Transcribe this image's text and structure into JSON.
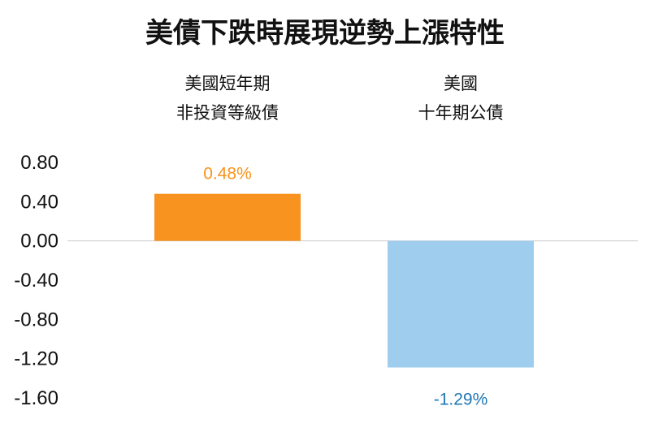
{
  "chart_data": {
    "type": "bar",
    "title": "美債下跌時展現逆勢上漲特性",
    "categories": [
      [
        "美國短年期",
        "非投資等級債"
      ],
      [
        "美國",
        "十年期公債"
      ]
    ],
    "values": [
      0.48,
      -1.29
    ],
    "data_labels": [
      "0.48%",
      "-1.29%"
    ],
    "colors": [
      "#F7931E",
      "#9ECDED"
    ],
    "label_colors": [
      "#F7931E",
      "#1F77B4"
    ],
    "ylim": [
      -1.6,
      0.8
    ],
    "yticks": [
      0.8,
      0.4,
      0.0,
      -0.4,
      -0.8,
      -1.2,
      -1.6
    ],
    "ytick_labels": [
      "0.80",
      "0.40",
      "0.00",
      "-0.40",
      "-0.80",
      "-1.20",
      "-1.60"
    ],
    "xlabel": "",
    "ylabel": "",
    "grid": false,
    "legend": "none"
  }
}
